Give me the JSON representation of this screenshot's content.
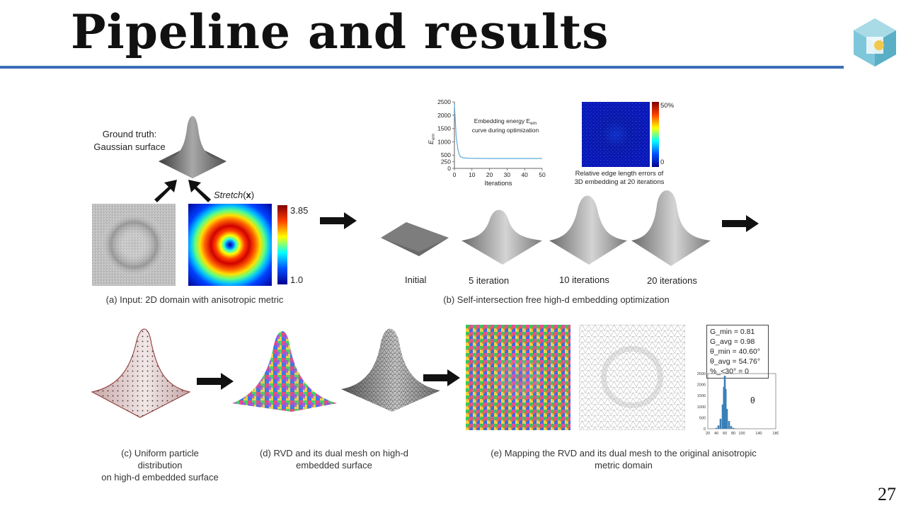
{
  "slide": {
    "title": "Pipeline and results",
    "page_number": "27"
  },
  "part_a": {
    "ground_truth_label_1": "Ground truth:",
    "ground_truth_label_2": "Gaussian surface",
    "stretch_label": "Stretch(x)",
    "stretch_italic": "Stretch",
    "stretch_bold": "x",
    "colorbar_max": "3.85",
    "colorbar_min": "1.0",
    "caption": "(a) Input: 2D domain with anisotropic metric"
  },
  "part_b": {
    "energy_label_1": "Embedding energy E",
    "energy_sub": "em",
    "energy_label_2": "curve during optimization",
    "ylabel": "E",
    "ylabel_sub": "em",
    "xlabel": "Iterations",
    "y_ticks": [
      "0",
      "250",
      "500",
      "1000",
      "1500",
      "2000",
      "2500"
    ],
    "x_ticks": [
      "0",
      "10",
      "20",
      "30",
      "40",
      "50"
    ],
    "error_max": "50%",
    "error_min": "0",
    "error_caption_1": "Relative edge length errors of",
    "error_caption_2": "3D embedding at 20 iterations",
    "stages": [
      "Initial",
      "5 iteration",
      "10 iterations",
      "20 iterations"
    ],
    "caption": "(b) Self-intersection free high-d embedding optimization"
  },
  "part_c": {
    "caption_1": "(c) Uniform particle distribution",
    "caption_2": "on high-d embedded surface"
  },
  "part_d": {
    "caption_1": "(d) RVD and its dual mesh on high-d",
    "caption_2": "embedded surface"
  },
  "part_e": {
    "stats": [
      "G_min = 0.81",
      "G_avg = 0.98",
      "θ_min = 40.60°",
      "θ_avg = 54.76°",
      "%_<30° = 0"
    ],
    "theta_label": "θ",
    "hist_y_ticks": [
      "0",
      "500",
      "1000",
      "1500",
      "2000",
      "2500"
    ],
    "hist_x_ticks": [
      "20",
      "40",
      "60",
      "80",
      "100",
      "140",
      "180"
    ],
    "caption_1": "(e) Mapping the RVD and its dual mesh to the original anisotropic",
    "caption_2": "metric domain"
  },
  "chart_data": [
    {
      "type": "line",
      "title": "Embedding energy E_em curve during optimization",
      "xlabel": "Iterations",
      "ylabel": "E_em",
      "xlim": [
        0,
        50
      ],
      "ylim": [
        0,
        2500
      ],
      "x": [
        0,
        1,
        2,
        3,
        4,
        5,
        7,
        10,
        15,
        20,
        30,
        40,
        50
      ],
      "series": [
        {
          "values": [
            2400,
            1200,
            700,
            480,
            420,
            400,
            385,
            378,
            375,
            373,
            372,
            372,
            372
          ]
        }
      ],
      "color": "#5ea9d8"
    },
    {
      "type": "bar",
      "title": "θ",
      "xlim": [
        20,
        180
      ],
      "ylim": [
        0,
        2500
      ],
      "categories": [
        40,
        45,
        50,
        55,
        58,
        60,
        62,
        65,
        70,
        75,
        80,
        85
      ],
      "values": [
        40,
        150,
        450,
        1100,
        1900,
        2400,
        1800,
        900,
        350,
        120,
        40,
        10
      ],
      "color": "#3b7fb8"
    }
  ]
}
